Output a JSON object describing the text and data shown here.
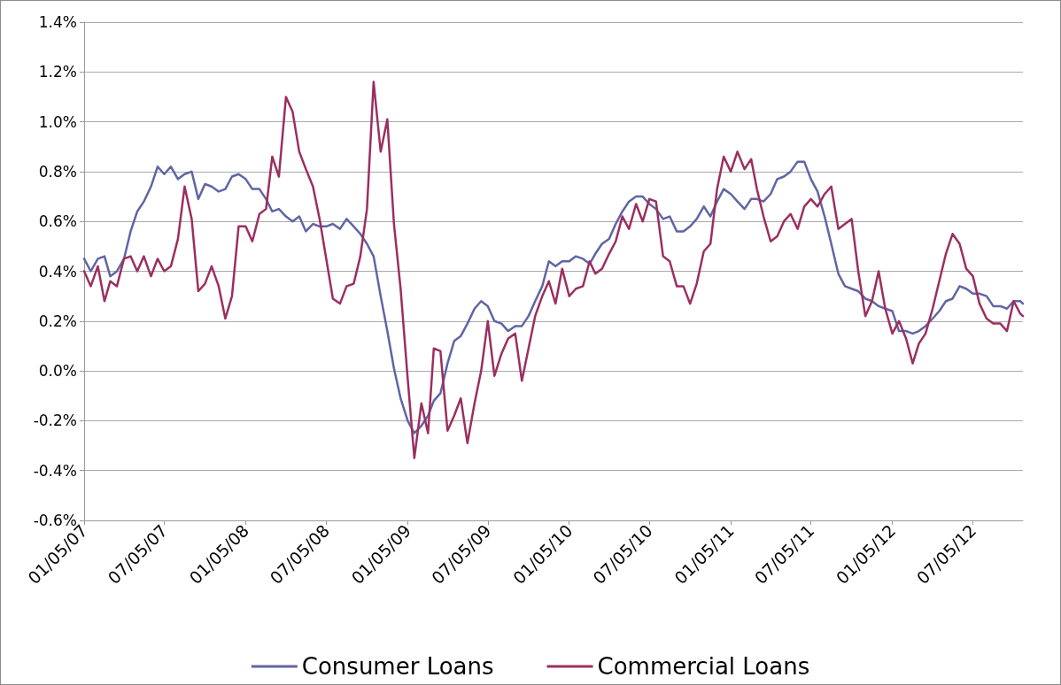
{
  "chart_data": {
    "type": "line",
    "x": [
      "2007-01-05",
      "2007-01-20",
      "2007-02-05",
      "2007-02-20",
      "2007-03-05",
      "2007-03-20",
      "2007-04-05",
      "2007-04-20",
      "2007-05-05",
      "2007-05-20",
      "2007-06-05",
      "2007-06-20",
      "2007-07-05",
      "2007-07-20",
      "2007-08-05",
      "2007-08-20",
      "2007-09-05",
      "2007-09-20",
      "2007-10-05",
      "2007-10-20",
      "2007-11-05",
      "2007-11-20",
      "2007-12-05",
      "2007-12-20",
      "2008-01-05",
      "2008-01-20",
      "2008-02-05",
      "2008-02-20",
      "2008-03-05",
      "2008-03-20",
      "2008-04-05",
      "2008-04-20",
      "2008-05-05",
      "2008-05-20",
      "2008-06-05",
      "2008-06-20",
      "2008-07-05",
      "2008-07-20",
      "2008-08-05",
      "2008-08-20",
      "2008-09-05",
      "2008-09-20",
      "2008-10-05",
      "2008-10-20",
      "2008-11-05",
      "2008-11-20",
      "2008-12-05",
      "2008-12-20",
      "2009-01-05",
      "2009-01-20",
      "2009-02-05",
      "2009-02-20",
      "2009-03-05",
      "2009-03-20",
      "2009-04-05",
      "2009-04-20",
      "2009-05-05",
      "2009-05-20",
      "2009-06-05",
      "2009-06-20",
      "2009-07-05",
      "2009-07-20",
      "2009-08-05",
      "2009-08-20",
      "2009-09-05",
      "2009-09-20",
      "2009-10-05",
      "2009-10-20",
      "2009-11-05",
      "2009-11-20",
      "2009-12-05",
      "2009-12-20",
      "2010-01-05",
      "2010-01-20",
      "2010-02-05",
      "2010-02-20",
      "2010-03-05",
      "2010-03-20",
      "2010-04-05",
      "2010-04-20",
      "2010-05-05",
      "2010-05-20",
      "2010-06-05",
      "2010-06-20",
      "2010-07-05",
      "2010-07-20",
      "2010-08-05",
      "2010-08-20",
      "2010-09-05",
      "2010-09-20",
      "2010-10-05",
      "2010-10-20",
      "2010-11-05",
      "2010-11-20",
      "2010-12-05",
      "2010-12-20",
      "2011-01-05",
      "2011-01-20",
      "2011-02-05",
      "2011-02-20",
      "2011-03-05",
      "2011-03-20",
      "2011-04-05",
      "2011-04-20",
      "2011-05-05",
      "2011-05-20",
      "2011-06-05",
      "2011-06-20",
      "2011-07-05",
      "2011-07-20",
      "2011-08-05",
      "2011-08-20",
      "2011-09-05",
      "2011-09-20",
      "2011-10-05",
      "2011-10-20",
      "2011-11-05",
      "2011-11-20",
      "2011-12-05",
      "2011-12-20",
      "2012-01-05",
      "2012-01-20",
      "2012-02-05",
      "2012-02-20",
      "2012-03-05",
      "2012-03-20",
      "2012-04-05",
      "2012-04-20",
      "2012-05-05",
      "2012-05-20",
      "2012-06-05",
      "2012-06-20",
      "2012-07-05",
      "2012-07-20",
      "2012-08-05",
      "2012-08-20",
      "2012-09-05",
      "2012-09-20",
      "2012-10-05",
      "2012-10-20",
      "2012-10-26"
    ],
    "series": [
      {
        "name": "Consumer Loans",
        "color": "#6065a3",
        "values": [
          0.45,
          0.4,
          0.45,
          0.46,
          0.38,
          0.4,
          0.45,
          0.56,
          0.64,
          0.68,
          0.74,
          0.82,
          0.79,
          0.82,
          0.77,
          0.79,
          0.8,
          0.69,
          0.75,
          0.74,
          0.72,
          0.73,
          0.78,
          0.79,
          0.77,
          0.73,
          0.73,
          0.69,
          0.64,
          0.65,
          0.62,
          0.6,
          0.62,
          0.56,
          0.59,
          0.58,
          0.58,
          0.59,
          0.57,
          0.61,
          0.58,
          0.55,
          0.51,
          0.46,
          0.3,
          0.16,
          0.01,
          -0.11,
          -0.2,
          -0.25,
          -0.22,
          -0.18,
          -0.12,
          -0.09,
          0.03,
          0.12,
          0.14,
          0.19,
          0.25,
          0.28,
          0.26,
          0.2,
          0.19,
          0.16,
          0.18,
          0.18,
          0.22,
          0.28,
          0.34,
          0.44,
          0.42,
          0.44,
          0.44,
          0.46,
          0.45,
          0.43,
          0.47,
          0.51,
          0.53,
          0.59,
          0.64,
          0.68,
          0.7,
          0.7,
          0.67,
          0.65,
          0.61,
          0.62,
          0.56,
          0.56,
          0.58,
          0.61,
          0.66,
          0.62,
          0.68,
          0.73,
          0.71,
          0.68,
          0.65,
          0.69,
          0.69,
          0.68,
          0.71,
          0.77,
          0.78,
          0.8,
          0.84,
          0.84,
          0.77,
          0.72,
          0.62,
          0.51,
          0.39,
          0.34,
          0.33,
          0.32,
          0.29,
          0.28,
          0.26,
          0.25,
          0.24,
          0.16,
          0.16,
          0.15,
          0.16,
          0.18,
          0.21,
          0.24,
          0.28,
          0.29,
          0.34,
          0.33,
          0.31,
          0.31,
          0.3,
          0.26,
          0.26,
          0.25,
          0.28,
          0.28,
          0.27
        ]
      },
      {
        "name": "Commercial Loans",
        "color": "#9b2f60",
        "values": [
          0.4,
          0.34,
          0.42,
          0.28,
          0.36,
          0.34,
          0.45,
          0.46,
          0.4,
          0.46,
          0.38,
          0.45,
          0.4,
          0.42,
          0.53,
          0.74,
          0.61,
          0.32,
          0.35,
          0.42,
          0.34,
          0.21,
          0.3,
          0.58,
          0.58,
          0.52,
          0.63,
          0.65,
          0.86,
          0.78,
          1.1,
          1.04,
          0.88,
          0.81,
          0.74,
          0.61,
          0.45,
          0.29,
          0.27,
          0.34,
          0.35,
          0.46,
          0.65,
          1.16,
          0.88,
          1.01,
          0.59,
          0.33,
          -0.03,
          -0.35,
          -0.13,
          -0.25,
          0.09,
          0.08,
          -0.24,
          -0.18,
          -0.11,
          -0.29,
          -0.13,
          0.0,
          0.2,
          -0.02,
          0.07,
          0.13,
          0.15,
          -0.04,
          0.09,
          0.22,
          0.3,
          0.36,
          0.27,
          0.41,
          0.3,
          0.33,
          0.34,
          0.44,
          0.39,
          0.41,
          0.47,
          0.52,
          0.62,
          0.57,
          0.67,
          0.6,
          0.69,
          0.68,
          0.46,
          0.44,
          0.34,
          0.34,
          0.27,
          0.35,
          0.48,
          0.51,
          0.73,
          0.86,
          0.8,
          0.88,
          0.81,
          0.85,
          0.73,
          0.62,
          0.52,
          0.54,
          0.6,
          0.63,
          0.57,
          0.66,
          0.69,
          0.66,
          0.71,
          0.74,
          0.57,
          0.59,
          0.61,
          0.4,
          0.22,
          0.28,
          0.4,
          0.25,
          0.15,
          0.2,
          0.13,
          0.03,
          0.11,
          0.15,
          0.25,
          0.36,
          0.47,
          0.55,
          0.51,
          0.41,
          0.38,
          0.27,
          0.21,
          0.19,
          0.19,
          0.16,
          0.28,
          0.23,
          0.22
        ]
      }
    ],
    "xlim": [
      "2007-01-05",
      "2012-10-26"
    ],
    "xticks": [
      {
        "value": "2007-01-05",
        "label": "01/05/07"
      },
      {
        "value": "2007-07-05",
        "label": "07/05/07"
      },
      {
        "value": "2008-01-05",
        "label": "01/05/08"
      },
      {
        "value": "2008-07-05",
        "label": "07/05/08"
      },
      {
        "value": "2009-01-05",
        "label": "01/05/09"
      },
      {
        "value": "2009-07-05",
        "label": "07/05/09"
      },
      {
        "value": "2010-01-05",
        "label": "01/05/10"
      },
      {
        "value": "2010-07-05",
        "label": "07/05/10"
      },
      {
        "value": "2011-01-05",
        "label": "01/05/11"
      },
      {
        "value": "2011-07-05",
        "label": "07/05/11"
      },
      {
        "value": "2012-01-05",
        "label": "01/05/12"
      },
      {
        "value": "2012-07-05",
        "label": "07/05/12"
      }
    ],
    "ylim": [
      -0.6,
      1.4
    ],
    "yticks": [
      {
        "value": -0.6,
        "label": "-0.6%"
      },
      {
        "value": -0.4,
        "label": "-0.4%"
      },
      {
        "value": -0.2,
        "label": "-0.2%"
      },
      {
        "value": 0,
        "label": "0.0%"
      },
      {
        "value": 0.2,
        "label": "0.2%"
      },
      {
        "value": 0.4,
        "label": "0.4%"
      },
      {
        "value": 0.6,
        "label": "0.6%"
      },
      {
        "value": 0.8,
        "label": "0.8%"
      },
      {
        "value": 1.0,
        "label": "1.0%"
      },
      {
        "value": 1.2,
        "label": "1.2%"
      },
      {
        "value": 1.4,
        "label": "1.4%"
      }
    ],
    "grid": "y",
    "legend": "bottom",
    "marker": "none",
    "line_style": "solid"
  }
}
